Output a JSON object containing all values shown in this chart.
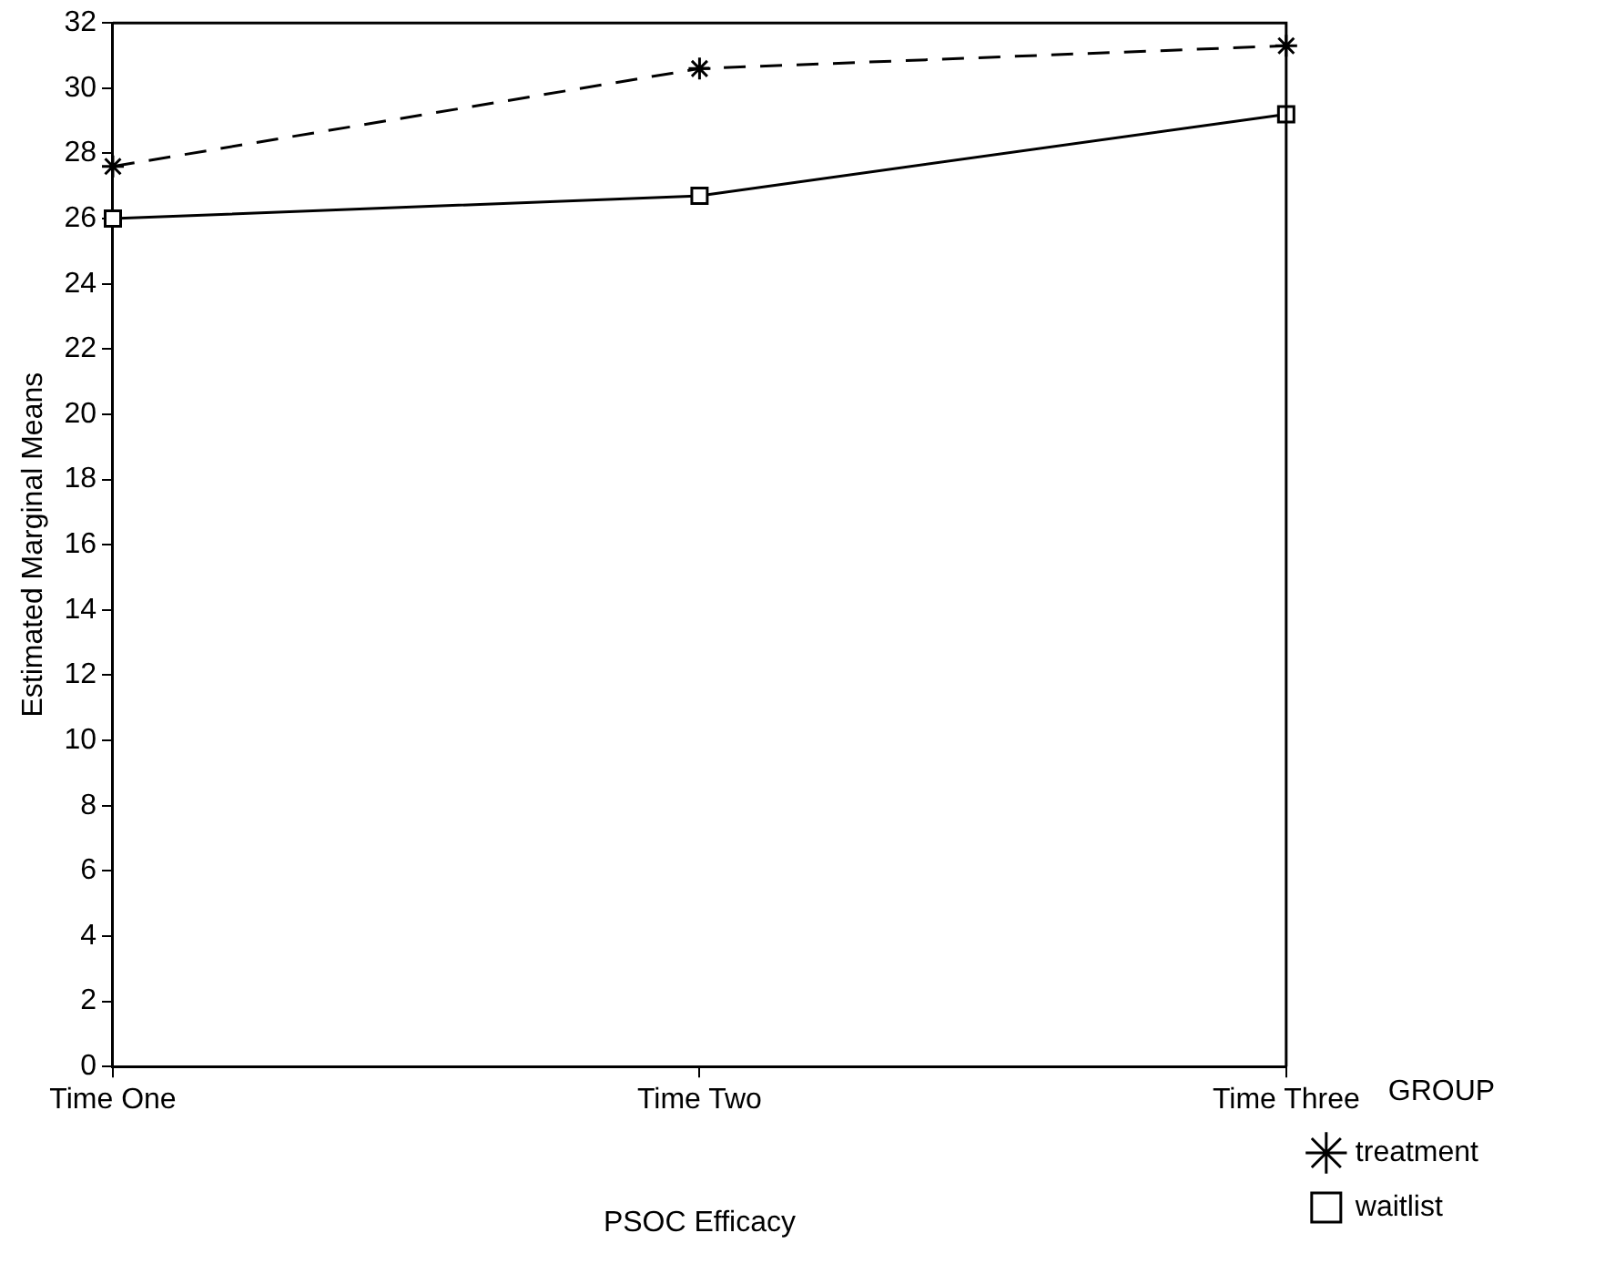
{
  "chart_data": {
    "type": "line",
    "xlabel": "PSOC Efficacy",
    "ylabel": "Estimated Marginal Means",
    "legend_title": "GROUP",
    "categories": [
      "Time One",
      "Time Two",
      "Time Three"
    ],
    "series": [
      {
        "name": "treatment",
        "color": "#000000",
        "values": [
          27.6,
          30.6,
          31.3
        ],
        "marker": "cross",
        "line_style": "dashed"
      },
      {
        "name": "waitlist",
        "color": "#000000",
        "values": [
          26.0,
          26.7,
          29.2
        ],
        "marker": "square",
        "line_style": "solid"
      }
    ],
    "ylim": [
      0,
      32
    ],
    "yticks": [
      0,
      2,
      4,
      6,
      8,
      10,
      12,
      14,
      16,
      18,
      20,
      22,
      24,
      26,
      28,
      30,
      32
    ],
    "grid": false,
    "legend": "bottom right"
  }
}
